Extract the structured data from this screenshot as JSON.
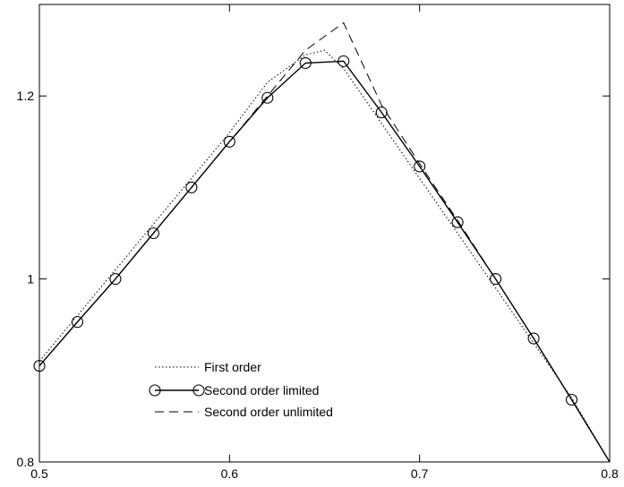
{
  "chart_data": {
    "type": "line",
    "title": "",
    "xlabel": "",
    "ylabel": "",
    "xlim": [
      0.5,
      0.8
    ],
    "ylim": [
      0.8,
      1.3
    ],
    "xticks": [
      0.5,
      0.6,
      0.7,
      0.8
    ],
    "xtick_labels": [
      "0.5",
      "0.6",
      "0.7",
      "0.8"
    ],
    "yticks": [
      0.8,
      1.0,
      1.2
    ],
    "ytick_labels": [
      "0.8",
      "1",
      "1.2"
    ],
    "grid": false,
    "legend_position": "lower-left",
    "series": [
      {
        "name": "First order",
        "style": "dotted",
        "x": [
          0.5,
          0.52,
          0.54,
          0.56,
          0.58,
          0.6,
          0.62,
          0.64,
          0.65,
          0.66,
          0.68,
          0.7,
          0.72,
          0.74,
          0.76,
          0.78,
          0.8
        ],
        "y": [
          0.91,
          0.96,
          1.01,
          1.06,
          1.11,
          1.16,
          1.215,
          1.245,
          1.25,
          1.23,
          1.17,
          1.11,
          1.05,
          0.99,
          0.93,
          0.87,
          0.8
        ]
      },
      {
        "name": "Second order limited",
        "style": "solid-circles",
        "x": [
          0.5,
          0.52,
          0.54,
          0.56,
          0.58,
          0.6,
          0.62,
          0.64,
          0.66,
          0.68,
          0.7,
          0.72,
          0.74,
          0.76,
          0.78,
          0.8
        ],
        "y": [
          0.905,
          0.953,
          1.0,
          1.05,
          1.1,
          1.15,
          1.198,
          1.236,
          1.238,
          1.182,
          1.123,
          1.062,
          1.0,
          0.935,
          0.868,
          0.8
        ]
      },
      {
        "name": "Second order unlimited",
        "style": "dashed",
        "x": [
          0.5,
          0.52,
          0.54,
          0.56,
          0.58,
          0.6,
          0.62,
          0.64,
          0.66,
          0.68,
          0.7,
          0.72,
          0.74,
          0.76,
          0.78,
          0.8
        ],
        "y": [
          0.905,
          0.953,
          1.0,
          1.05,
          1.1,
          1.15,
          1.2,
          1.25,
          1.28,
          1.19,
          1.126,
          1.064,
          1.0,
          0.935,
          0.868,
          0.8
        ]
      }
    ]
  }
}
